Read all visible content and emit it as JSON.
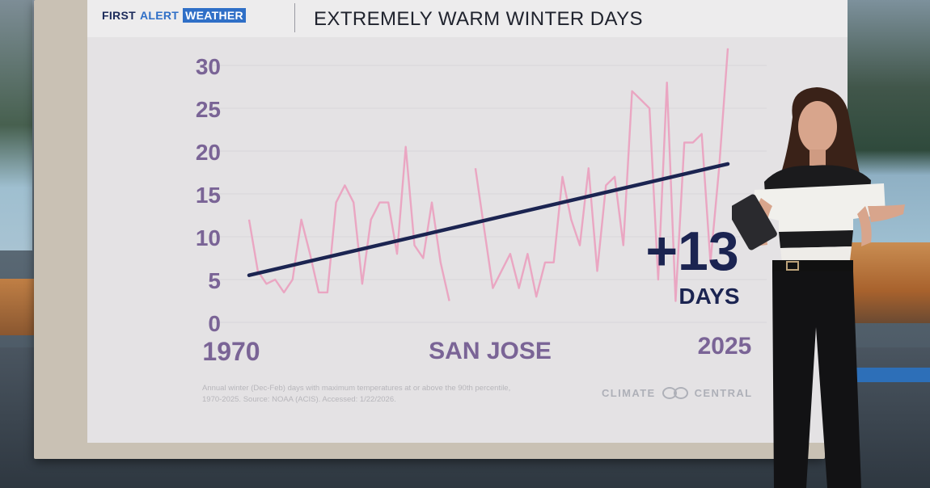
{
  "header": {
    "brand_first": "FIRST",
    "brand_alert": "ALERT",
    "brand_weather": "WEATHER",
    "title": "EXTREMELY WARM WINTER DAYS"
  },
  "labels": {
    "start_year": "1970",
    "end_year": "2025",
    "city": "SAN JOSE",
    "change_value": "+13",
    "change_unit": "DAYS"
  },
  "footnote": {
    "line1": "Annual winter (Dec-Feb) days with maximum temperatures at or above the 90th percentile,",
    "line2": "1970-2025. Source: NOAA (ACIS). Accessed: 1/22/2026."
  },
  "credit": {
    "left": "CLIMATE",
    "right": "CENTRAL"
  },
  "colors": {
    "series": "#eaa6c2",
    "trend": "#1b2451",
    "axis_text": "#7a6496",
    "title_text": "#20232e",
    "brand_blue": "#2f6fc7",
    "brand_navy": "#1b2a5a"
  },
  "icons": {
    "credit_logo": "linked-circles-icon"
  },
  "chart_data": {
    "type": "line",
    "x": [
      1970,
      1971,
      1972,
      1973,
      1974,
      1975,
      1976,
      1977,
      1978,
      1979,
      1980,
      1981,
      1982,
      1983,
      1984,
      1985,
      1986,
      1987,
      1988,
      1989,
      1990,
      1991,
      1992,
      1993,
      1994,
      1995,
      1996,
      1997,
      1998,
      1999,
      2000,
      2001,
      2002,
      2003,
      2004,
      2005,
      2006,
      2007,
      2008,
      2009,
      2010,
      2011,
      2012,
      2013,
      2014,
      2015,
      2016,
      2017,
      2018,
      2019,
      2020,
      2021,
      2022,
      2023,
      2024,
      2025
    ],
    "series": [
      {
        "values": [
          12,
          6,
          4.5,
          5,
          3.5,
          5,
          12,
          8,
          3.5,
          3.5,
          14,
          16,
          14,
          4.5,
          12,
          14,
          14,
          8,
          20.5,
          9,
          7.5,
          14,
          7,
          2.5,
          null,
          null,
          18,
          11,
          4,
          6,
          8,
          4,
          8,
          3,
          7,
          7,
          17,
          12,
          9,
          18,
          6,
          16,
          17,
          9,
          27,
          26,
          25,
          5,
          28,
          2.5,
          21,
          21,
          22,
          7,
          18,
          32
        ]
      }
    ],
    "trend": {
      "start_value": 5.5,
      "end_value": 18.5,
      "change": 13
    },
    "yticks": [
      0,
      5,
      10,
      15,
      20,
      25,
      30
    ],
    "xlabel": "",
    "ylabel": "",
    "ylim": [
      0,
      30
    ],
    "grid": true
  }
}
